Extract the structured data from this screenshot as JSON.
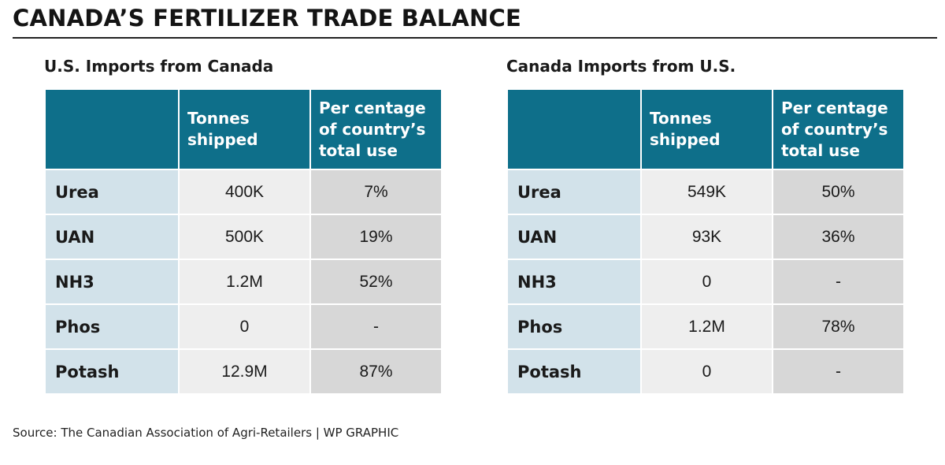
{
  "title": "CANADA’S FERTILIZER TRADE BALANCE",
  "source": "Source: The Canadian Association of Agri-Retailers  |  WP GRAPHIC",
  "colors": {
    "header_bg": "#0e6f8a",
    "label_bg": "#d2e2ea",
    "tonnes_bg": "#eeeeee",
    "pct_bg": "#d7d7d7"
  },
  "chart_data": [
    {
      "type": "table",
      "title": "U.S. Imports from Canada",
      "columns": [
        "",
        "Tonnes\nshipped",
        "Per centage\nof country’s\ntotal use"
      ],
      "rows": [
        {
          "label": "Urea",
          "tonnes": "400K",
          "pct": "7%"
        },
        {
          "label": "UAN",
          "tonnes": "500K",
          "pct": "19%"
        },
        {
          "label": "NH3",
          "tonnes": "1.2M",
          "pct": "52%"
        },
        {
          "label": "Phos",
          "tonnes": "0",
          "pct": "-"
        },
        {
          "label": "Potash",
          "tonnes": "12.9M",
          "pct": "87%"
        }
      ]
    },
    {
      "type": "table",
      "title": "Canada Imports from U.S.",
      "columns": [
        "",
        "Tonnes\nshipped",
        "Per centage\nof country’s\ntotal use"
      ],
      "rows": [
        {
          "label": "Urea",
          "tonnes": "549K",
          "pct": "50%"
        },
        {
          "label": "UAN",
          "tonnes": "93K",
          "pct": "36%"
        },
        {
          "label": "NH3",
          "tonnes": "0",
          "pct": "-"
        },
        {
          "label": "Phos",
          "tonnes": "1.2M",
          "pct": "78%"
        },
        {
          "label": "Potash",
          "tonnes": "0",
          "pct": "-"
        }
      ]
    }
  ]
}
